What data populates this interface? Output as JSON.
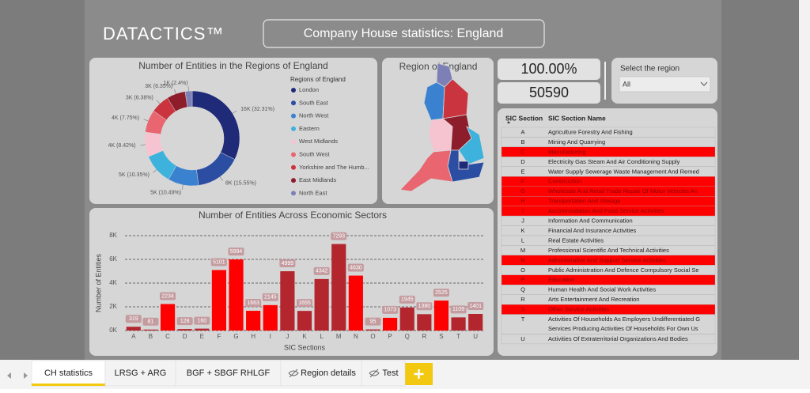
{
  "header": {
    "logo": "DATACTICS™",
    "title": "Company House statistics: England"
  },
  "kpis": {
    "percent": "100.00%",
    "count": "50590"
  },
  "slicer": {
    "label": "Select the region",
    "value": "All"
  },
  "map": {
    "title": "Region of England"
  },
  "chart_data": [
    {
      "type": "pie",
      "donut": true,
      "title": "Number of Entities in the Regions of England",
      "legend_title": "Regions of England",
      "categories": [
        "London",
        "South East",
        "North West",
        "Eastern",
        "West Midlands",
        "South West",
        "Yorkshire and The Humb...",
        "East Midlands",
        "North East"
      ],
      "values": [
        16346,
        7867,
        5307,
        5236,
        4260,
        3921,
        3228,
        3212,
        1214
      ],
      "value_labels": [
        "16K (32.31%)",
        "8K (15.55%)",
        "5K (10.49%)",
        "5K (10.35%)",
        "4K (8.42%)",
        "4K (7.75%)",
        "3K (6.38%)",
        "3K (6.35%)",
        "1K (2.4%)"
      ],
      "colors": [
        "#1f2a78",
        "#2b4ea3",
        "#3a82cf",
        "#3cb2dd",
        "#f6c4d1",
        "#e9656f",
        "#c9343e",
        "#8d1d2b",
        "#7d80b6"
      ]
    },
    {
      "type": "bar",
      "title": "Number of Entities Across Economic Sectors",
      "xlabel": "SIC Sections",
      "ylabel": "Number of Entities",
      "categories": [
        "A",
        "B",
        "C",
        "D",
        "E",
        "F",
        "G",
        "H",
        "I",
        "J",
        "K",
        "L",
        "M",
        "N",
        "O",
        "P",
        "Q",
        "R",
        "S",
        "T",
        "U"
      ],
      "values": [
        319,
        81,
        2234,
        128,
        160,
        5101,
        5994,
        1663,
        2145,
        4999,
        1655,
        4342,
        7293,
        4630,
        95,
        1073,
        1945,
        1380,
        2525,
        1109,
        1401
      ],
      "colors": [
        "#b3262e",
        "#b3262e",
        "#ff0000",
        "#b3262e",
        "#b3262e",
        "#ff0000",
        "#ff0000",
        "#ff0000",
        "#ff0000",
        "#b3262e",
        "#b3262e",
        "#b3262e",
        "#b3262e",
        "#ff0000",
        "#b3262e",
        "#ff0000",
        "#b3262e",
        "#b3262e",
        "#ff0000",
        "#b3262e",
        "#b3262e"
      ],
      "ylim": [
        0,
        8000
      ],
      "yticks": [
        {
          "value": 0,
          "label": "0K"
        },
        {
          "value": 2000,
          "label": "2K"
        },
        {
          "value": 4000,
          "label": "4K"
        },
        {
          "value": 6000,
          "label": "6K"
        },
        {
          "value": 8000,
          "label": "8K"
        }
      ],
      "grid": true,
      "data_labels": true
    }
  ],
  "table": {
    "columns": [
      "SIC Section",
      "SIC Section Name"
    ],
    "highlight_color": "#ff0000",
    "rows": [
      {
        "code": "A",
        "name": "Agriculture Forestry And Fishing",
        "highlight": false
      },
      {
        "code": "B",
        "name": "Mining And Quarrying",
        "highlight": false
      },
      {
        "code": "C",
        "name": "Manufacturing",
        "highlight": true
      },
      {
        "code": "D",
        "name": "Electricity Gas Steam And Air Conditioning Supply",
        "highlight": false
      },
      {
        "code": "E",
        "name": "Water Supply Sewerage Waste Management And Remed",
        "highlight": false
      },
      {
        "code": "F",
        "name": "Construction",
        "highlight": true
      },
      {
        "code": "G",
        "name": "Wholesale And Retail Trade Repair Of Motor Vehicles An",
        "highlight": true
      },
      {
        "code": "H",
        "name": "Transportation And Storage",
        "highlight": true
      },
      {
        "code": "I",
        "name": "Accommodation And Food Service Activities",
        "highlight": true
      },
      {
        "code": "J",
        "name": "Information And Communication",
        "highlight": false
      },
      {
        "code": "K",
        "name": "Financial And Insurance Activities",
        "highlight": false
      },
      {
        "code": "L",
        "name": "Real Estate Activities",
        "highlight": false
      },
      {
        "code": "M",
        "name": "Professional Scientific And Technical Activities",
        "highlight": false
      },
      {
        "code": "N",
        "name": "Administrative And Support Service Activities",
        "highlight": true
      },
      {
        "code": "O",
        "name": "Public Administration And Defence Compulsory Social Se",
        "highlight": false
      },
      {
        "code": "P",
        "name": "Education",
        "highlight": true
      },
      {
        "code": "Q",
        "name": "Human Health And Social Work Activities",
        "highlight": false
      },
      {
        "code": "R",
        "name": "Arts Entertainment And Recreation",
        "highlight": false
      },
      {
        "code": "S",
        "name": "Other Service Activities",
        "highlight": true
      },
      {
        "code": "T",
        "name": "Activities Of Households As Employers Undifferentiated G",
        "name2": "Services Producing Activities Of Households For Own Us",
        "highlight": false
      },
      {
        "code": "U",
        "name": "Activities Of Extraterritorial Organizations And Bodies",
        "highlight": false
      }
    ]
  },
  "tabs": {
    "items": [
      "CH statistics",
      "LRSG + ARG",
      "BGF + SBGF RHLGF",
      "Region details",
      "Test"
    ],
    "active": 0,
    "hidden": [
      3,
      4
    ]
  }
}
